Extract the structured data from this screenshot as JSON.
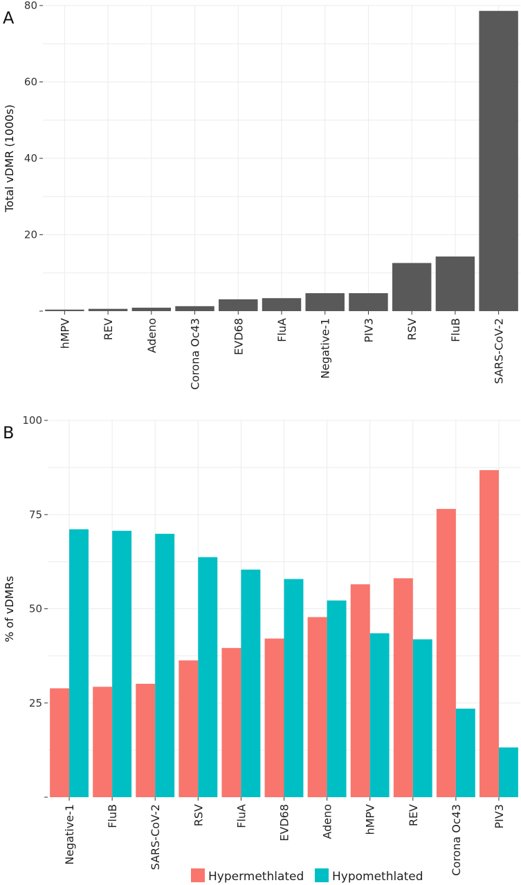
{
  "chart_data": [
    {
      "panel": "A",
      "type": "bar",
      "ylabel": "Total vDMR (1000s)",
      "ylim": [
        0,
        80
      ],
      "yticks": [
        20,
        40,
        60,
        80
      ],
      "grid": true,
      "categories": [
        "hMPV",
        "REV",
        "Adeno",
        "Corona Oc43",
        "EVD68",
        "FluA",
        "Negative-1",
        "PIV3",
        "RSV",
        "FluB",
        "SARS-CoV-2"
      ],
      "series": [
        {
          "values": [
            0.4,
            0.6,
            0.9,
            1.3,
            3.1,
            3.4,
            4.7,
            4.7,
            12.6,
            14.3,
            78.6
          ],
          "color": "#595959"
        }
      ]
    },
    {
      "panel": "B",
      "type": "bar",
      "ylabel": "% of vDMRs",
      "ylim": [
        0,
        100
      ],
      "yticks": [
        25,
        50,
        75,
        100
      ],
      "grid": true,
      "legend_position": "bottom",
      "categories": [
        "Negative-1",
        "FluB",
        "SARS-CoV-2",
        "RSV",
        "FluA",
        "EVD68",
        "Adeno",
        "hMPV",
        "REV",
        "Corona Oc43",
        "PIV3"
      ],
      "series": [
        {
          "name": "Hypermethlated",
          "color": "#F8766D",
          "values": [
            28.9,
            29.3,
            30.1,
            36.3,
            39.6,
            42.1,
            47.8,
            56.5,
            58.1,
            76.5,
            86.8
          ]
        },
        {
          "name": "Hypomethlated",
          "color": "#00BFC4",
          "values": [
            71.1,
            70.7,
            69.9,
            63.7,
            60.4,
            57.9,
            52.2,
            43.5,
            41.9,
            23.5,
            13.2
          ]
        }
      ]
    }
  ]
}
